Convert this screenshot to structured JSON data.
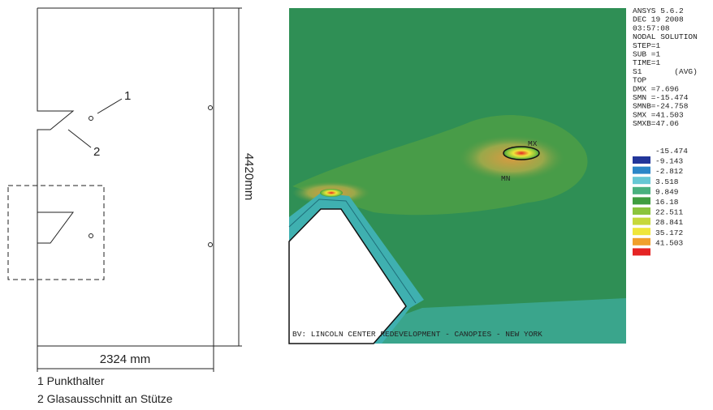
{
  "drawing": {
    "label_1": "1",
    "label_2": "2",
    "height_dim": "4420mm",
    "width_dim": "2324 mm",
    "notes": [
      "1 Punkthalter",
      "2 Glasausschnitt an Stütze"
    ]
  },
  "fea": {
    "info": [
      "ANSYS 5.6.2",
      "DEC 19 2008",
      "03:57:08",
      "NODAL SOLUTION",
      "STEP=1",
      "SUB =1",
      "TIME=1",
      "S1       (AVG)",
      "TOP",
      "DMX =7.696",
      "SMN =-15.474",
      "SMNB=-24.758",
      "SMX =41.503",
      "SMXB=47.06"
    ],
    "legend_values": [
      "-15.474",
      "-9.143",
      "-2.812",
      "3.518",
      "9.849",
      "16.18",
      "22.511",
      "28.841",
      "35.172",
      "41.503"
    ],
    "legend_colors": [
      "#22369a",
      "#2b86c8",
      "#66c7d4",
      "#49b07e",
      "#3f9d3f",
      "#8bc43c",
      "#c6d83a",
      "#efe63a",
      "#f0a02c",
      "#e52424"
    ],
    "max_label": "MX",
    "min_label": "MN",
    "caption": "BV: LINCOLN CENTER REDEVELOPMENT - CANOPIES - NEW YORK"
  }
}
